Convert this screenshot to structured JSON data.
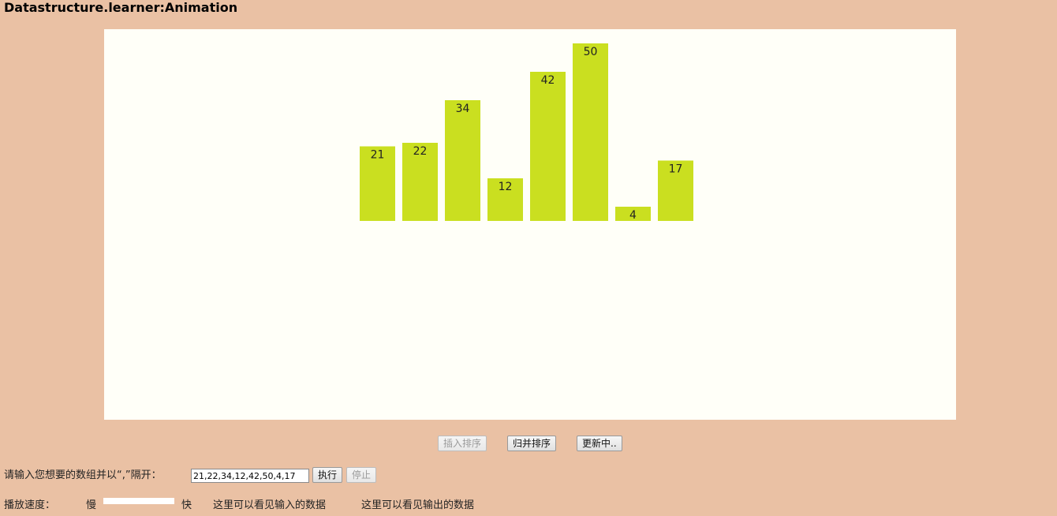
{
  "window": {
    "title": "Datastructure.learner:Animation"
  },
  "chart_data": {
    "type": "bar",
    "categories": [
      "21",
      "22",
      "34",
      "12",
      "42",
      "50",
      "4",
      "17"
    ],
    "values": [
      21,
      22,
      34,
      12,
      42,
      50,
      4,
      17
    ],
    "title": "",
    "xlabel": "",
    "ylabel": "",
    "bar_color": "#cadf20",
    "background_color": "#fffff8"
  },
  "buttons": {
    "insertion_sort": "插入排序",
    "merge_sort": "归并排序",
    "updating": "更新中..",
    "execute": "执行",
    "stop": "停止"
  },
  "input_row": {
    "prompt": "请输入您想要的数组并以“,”隔开：",
    "value": "21,22,34,12,42,50,4,17"
  },
  "speed_row": {
    "label": "播放速度：",
    "slow": "慢",
    "fast": "快",
    "input_data_text": "这里可以看见输入的数据",
    "output_data_text": "这里可以看见输出的数据"
  }
}
